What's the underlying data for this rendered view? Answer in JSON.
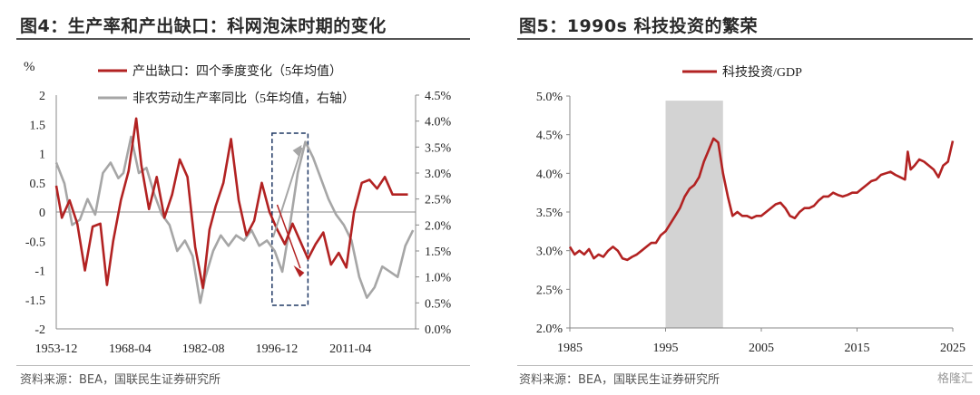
{
  "left": {
    "title": "图4：生产率和产出缺口：科网泡沫时期的变化",
    "source": "资料来源：BEA，国联民生证券研究所",
    "unit_label": "%"
  },
  "right": {
    "title": "图5：1990s 科技投资的繁荣",
    "source": "资料来源：BEA，国联民生证券研究所"
  },
  "watermark": "格隆汇",
  "colors": {
    "red": "#b22222",
    "gray": "#a6a6a6",
    "shade": "#d3d3d3",
    "box": "#1f3864"
  },
  "chart_data": [
    {
      "type": "line",
      "x_ticks": [
        "1953-12",
        "1968-04",
        "1982-08",
        "1996-12",
        "2011-04"
      ],
      "y_left": {
        "ylim": [
          -2,
          2
        ],
        "ticks": [
          -2,
          -1.5,
          -1,
          -0.5,
          0,
          0.5,
          1,
          1.5,
          2
        ]
      },
      "y_right": {
        "ylim": [
          0,
          4.5
        ],
        "ticks": [
          "0.0%",
          "0.5%",
          "1.0%",
          "1.5%",
          "2.0%",
          "2.5%",
          "3.0%",
          "3.5%",
          "4.0%",
          "4.5%"
        ]
      },
      "legend_placement": "top",
      "highlight_window": [
        1996.0,
        2003.0
      ],
      "series": [
        {
          "name": "产出缺口：四个季度变化（5年均值）",
          "axis": "left",
          "x": [
            1953.9,
            1955,
            1956.5,
            1958,
            1959.5,
            1961,
            1962.5,
            1963.8,
            1965,
            1966.5,
            1968,
            1969.5,
            1970.5,
            1972,
            1973.5,
            1975,
            1976.5,
            1978,
            1979.5,
            1981,
            1982.5,
            1983.8,
            1985,
            1986.5,
            1988,
            1989.5,
            1991,
            1992.5,
            1994,
            1995.5,
            1997,
            1998.5,
            2000,
            2001.5,
            2003,
            2004.5,
            2006,
            2007.5,
            2009,
            2010.5,
            2012,
            2013.5,
            2015,
            2016.5,
            2018,
            2019.5,
            2021,
            2022.5
          ],
          "values": [
            0.45,
            -0.1,
            0.2,
            -0.2,
            -1.0,
            -0.25,
            -0.2,
            -1.25,
            -0.5,
            0.2,
            0.7,
            1.6,
            0.8,
            0.05,
            0.6,
            -0.1,
            0.3,
            0.9,
            0.6,
            -0.6,
            -1.3,
            -0.3,
            0.1,
            0.5,
            1.25,
            0.2,
            -0.4,
            -0.15,
            0.5,
            0.0,
            -0.3,
            -0.55,
            -0.2,
            -0.5,
            -0.8,
            -0.55,
            -0.35,
            -0.9,
            -0.7,
            -0.95,
            0.0,
            0.5,
            0.55,
            0.4,
            0.6,
            0.3,
            0.3,
            0.3
          ]
        },
        {
          "name": "非农劳动生产率同比（5年均值，右轴）",
          "axis": "right",
          "x": [
            1953.9,
            1955.5,
            1957,
            1958.5,
            1960,
            1961.5,
            1963,
            1964.5,
            1966,
            1967,
            1968.5,
            1970,
            1971.5,
            1973,
            1974.5,
            1976,
            1977.5,
            1979,
            1980.5,
            1982,
            1983,
            1984.5,
            1986,
            1987.5,
            1989,
            1990.5,
            1992,
            1993.5,
            1995,
            1996.5,
            1998,
            1999.5,
            2001,
            2002.5,
            2004,
            2005.5,
            2007,
            2008.5,
            2010,
            2011.5,
            2013,
            2014.5,
            2016,
            2017.5,
            2019,
            2020.5,
            2022,
            2023.5
          ],
          "values": [
            3.2,
            2.8,
            2.0,
            2.1,
            2.5,
            2.2,
            3.0,
            3.2,
            2.9,
            3.0,
            3.7,
            3.0,
            3.1,
            2.6,
            2.2,
            2.0,
            1.5,
            1.7,
            1.4,
            0.5,
            1.0,
            1.5,
            1.8,
            1.6,
            1.8,
            1.7,
            1.9,
            1.6,
            1.7,
            1.5,
            1.1,
            2.0,
            3.0,
            3.6,
            3.3,
            2.9,
            2.5,
            2.2,
            2.0,
            1.7,
            1.0,
            0.6,
            0.8,
            1.2,
            1.1,
            1.0,
            1.6,
            1.9
          ]
        }
      ]
    },
    {
      "type": "line",
      "x_ticks": [
        1985,
        1995,
        2005,
        2015,
        2025
      ],
      "xlim": [
        1985,
        2025
      ],
      "ylim": [
        2.0,
        5.0
      ],
      "y_ticks": [
        "2.0%",
        "2.5%",
        "3.0%",
        "3.5%",
        "4.0%",
        "4.5%",
        "5.0%"
      ],
      "shaded_window": [
        1995,
        2001
      ],
      "legend_placement": "top",
      "series": [
        {
          "name": "科技投资/GDP",
          "x": [
            1985,
            1985.5,
            1986,
            1986.5,
            1987,
            1987.5,
            1988,
            1988.5,
            1989,
            1989.5,
            1990,
            1990.5,
            1991,
            1991.5,
            1992,
            1992.5,
            1993,
            1993.5,
            1994,
            1994.5,
            1995,
            1995.5,
            1996,
            1996.5,
            1997,
            1997.5,
            1998,
            1998.5,
            1999,
            1999.5,
            2000,
            2000.5,
            2001,
            2001.5,
            2002,
            2002.5,
            2003,
            2003.5,
            2004,
            2004.5,
            2005,
            2005.5,
            2006,
            2006.5,
            2007,
            2007.5,
            2008,
            2008.5,
            2009,
            2009.5,
            2010,
            2010.5,
            2011,
            2011.5,
            2012,
            2012.5,
            2013,
            2013.5,
            2014,
            2014.5,
            2015,
            2015.5,
            2016,
            2016.5,
            2017,
            2017.5,
            2018,
            2018.5,
            2019,
            2019.5,
            2020,
            2020.3,
            2020.6,
            2021,
            2021.5,
            2022,
            2022.5,
            2023,
            2023.5,
            2024,
            2024.5,
            2025
          ],
          "values": [
            3.05,
            2.95,
            3.0,
            2.95,
            3.02,
            2.9,
            2.95,
            2.92,
            3.0,
            3.05,
            3.0,
            2.9,
            2.88,
            2.92,
            2.95,
            3.0,
            3.05,
            3.1,
            3.1,
            3.2,
            3.25,
            3.35,
            3.45,
            3.55,
            3.7,
            3.8,
            3.85,
            3.95,
            4.15,
            4.3,
            4.45,
            4.4,
            4.0,
            3.7,
            3.45,
            3.5,
            3.45,
            3.45,
            3.42,
            3.45,
            3.45,
            3.5,
            3.55,
            3.6,
            3.62,
            3.55,
            3.45,
            3.42,
            3.5,
            3.55,
            3.55,
            3.58,
            3.65,
            3.7,
            3.7,
            3.75,
            3.72,
            3.7,
            3.72,
            3.75,
            3.75,
            3.8,
            3.85,
            3.9,
            3.92,
            3.98,
            4.0,
            4.02,
            3.98,
            3.95,
            3.92,
            4.28,
            4.05,
            4.1,
            4.18,
            4.15,
            4.1,
            4.05,
            3.95,
            4.1,
            4.15,
            4.42
          ]
        }
      ]
    }
  ]
}
